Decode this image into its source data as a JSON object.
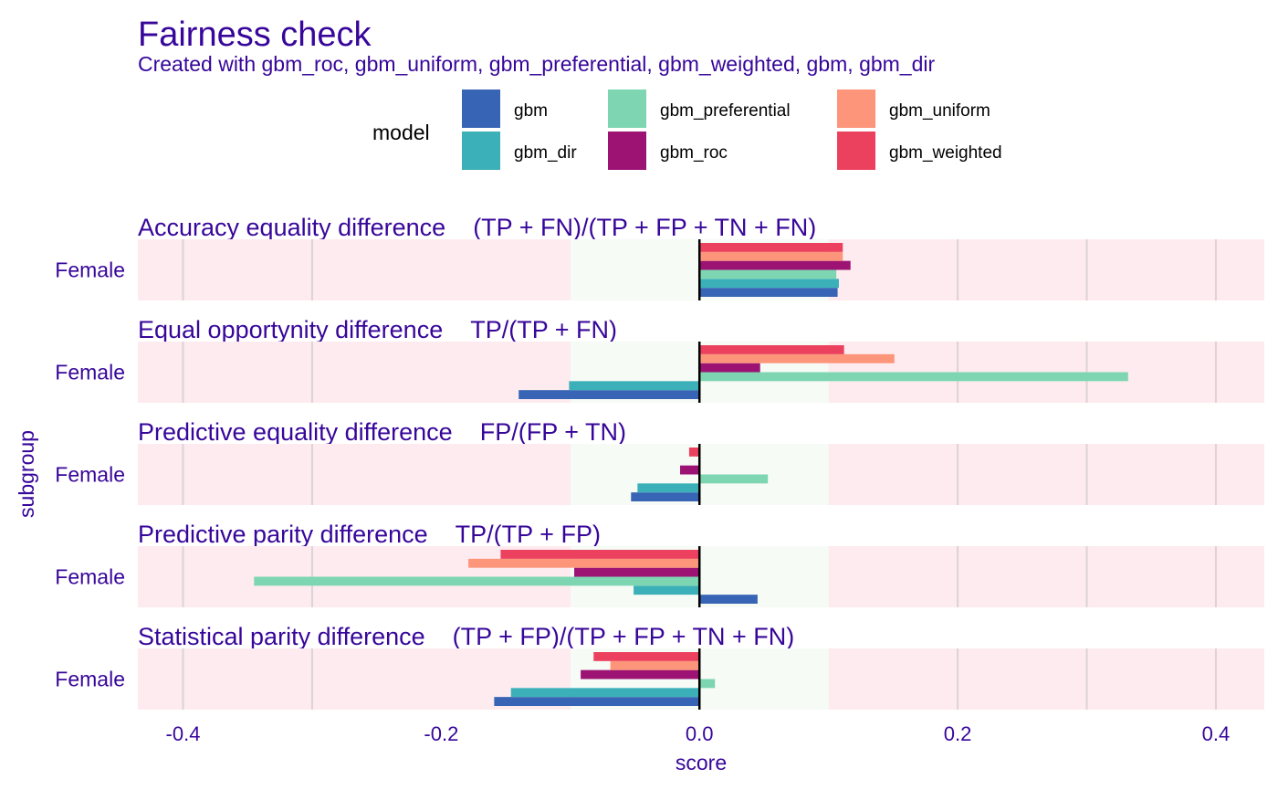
{
  "chart_data": {
    "type": "bar",
    "orientation": "horizontal",
    "title": "Fairness check",
    "subtitle": "Created with gbm_roc, gbm_uniform, gbm_preferential, gbm_weighted, gbm, gbm_dir",
    "xlabel": "score",
    "ylabel": "subgroup",
    "xlim": [
      -0.435,
      0.4375
    ],
    "xticks": [
      -0.4,
      -0.2,
      0.0,
      0.2,
      0.4
    ],
    "xtick_labels": [
      "-0.4",
      "-0.2",
      "0.0",
      "0.2",
      "0.4"
    ],
    "fair_region": [
      -0.1,
      0.1
    ],
    "legend": {
      "title": "model",
      "placement": "top",
      "entries": [
        {
          "name": "gbm",
          "color": "#3764b4"
        },
        {
          "name": "gbm_dir",
          "color": "#3cb0b8"
        },
        {
          "name": "gbm_preferential",
          "color": "#7dd6b1"
        },
        {
          "name": "gbm_roc",
          "color": "#9c1373"
        },
        {
          "name": "gbm_uniform",
          "color": "#fd957b"
        },
        {
          "name": "gbm_weighted",
          "color": "#ec415e"
        }
      ]
    },
    "bar_order": [
      "gbm",
      "gbm_dir",
      "gbm_preferential",
      "gbm_roc",
      "gbm_uniform",
      "gbm_weighted"
    ],
    "colors": {
      "text": "#37069a",
      "unfair_band": "#fdebef",
      "fair_band": "#f6fbf6",
      "grid": "#dcd3d6",
      "zero_line": "#000000"
    },
    "panels": [
      {
        "metric": "Accuracy equality difference",
        "formula": "(TP + FN)/(TP + FP + TN + FN)",
        "subgroup": "Female",
        "values": {
          "gbm": 0.107,
          "gbm_dir": 0.108,
          "gbm_preferential": 0.106,
          "gbm_roc": 0.117,
          "gbm_uniform": 0.111,
          "gbm_weighted": 0.111
        }
      },
      {
        "metric": "Equal opportynity difference",
        "formula": "TP/(TP + FN)",
        "subgroup": "Female",
        "values": {
          "gbm": -0.14,
          "gbm_dir": -0.101,
          "gbm_preferential": 0.332,
          "gbm_roc": 0.047,
          "gbm_uniform": 0.151,
          "gbm_weighted": 0.112
        }
      },
      {
        "metric": "Predictive equality difference",
        "formula": "FP/(FP + TN)",
        "subgroup": "Female",
        "values": {
          "gbm": -0.053,
          "gbm_dir": -0.048,
          "gbm_preferential": 0.053,
          "gbm_roc": -0.015,
          "gbm_uniform": 0.0,
          "gbm_weighted": -0.008
        }
      },
      {
        "metric": "Predictive parity difference",
        "formula": "TP/(TP + FP)",
        "subgroup": "Female",
        "values": {
          "gbm": 0.045,
          "gbm_dir": -0.051,
          "gbm_preferential": -0.345,
          "gbm_roc": -0.097,
          "gbm_uniform": -0.179,
          "gbm_weighted": -0.154
        }
      },
      {
        "metric": "Statistical parity difference",
        "formula": "(TP + FP)/(TP + FP + TN + FN)",
        "subgroup": "Female",
        "values": {
          "gbm": -0.159,
          "gbm_dir": -0.146,
          "gbm_preferential": 0.012,
          "gbm_roc": -0.092,
          "gbm_uniform": -0.069,
          "gbm_weighted": -0.082
        }
      }
    ]
  }
}
